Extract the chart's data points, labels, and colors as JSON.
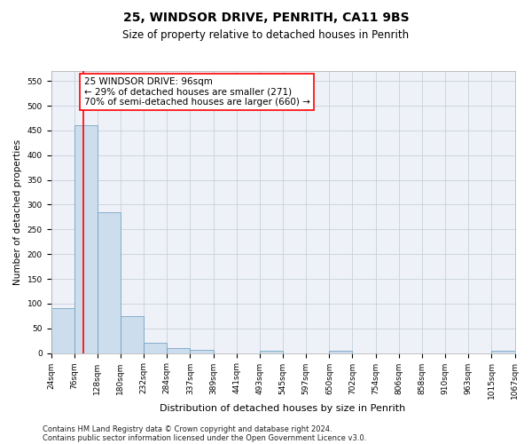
{
  "title1": "25, WINDSOR DRIVE, PENRITH, CA11 9BS",
  "title2": "Size of property relative to detached houses in Penrith",
  "xlabel": "Distribution of detached houses by size in Penrith",
  "ylabel": "Number of detached properties",
  "footnote1": "Contains HM Land Registry data © Crown copyright and database right 2024.",
  "footnote2": "Contains public sector information licensed under the Open Government Licence v3.0.",
  "annotation_line1": "25 WINDSOR DRIVE: 96sqm",
  "annotation_line2": "← 29% of detached houses are smaller (271)",
  "annotation_line3": "70% of semi-detached houses are larger (660) →",
  "bar_color": "#ccdded",
  "bar_edge_color": "#6699bb",
  "red_line_x": 96,
  "ylim": [
    0,
    570
  ],
  "yticks": [
    0,
    50,
    100,
    150,
    200,
    250,
    300,
    350,
    400,
    450,
    500,
    550
  ],
  "bins": [
    24,
    76,
    128,
    180,
    232,
    284,
    337,
    389,
    441,
    493,
    545,
    597,
    650,
    702,
    754,
    806,
    858,
    910,
    963,
    1015,
    1067
  ],
  "values": [
    90,
    460,
    285,
    75,
    20,
    10,
    7,
    0,
    0,
    5,
    0,
    0,
    5,
    0,
    0,
    0,
    0,
    0,
    0,
    5
  ],
  "background_color": "#eef2f8",
  "grid_color": "#c8d0dc",
  "title1_fontsize": 10,
  "title2_fontsize": 8.5,
  "xlabel_fontsize": 8,
  "ylabel_fontsize": 7.5,
  "tick_fontsize": 6.5,
  "annotation_fontsize": 7.5,
  "footnote_fontsize": 6
}
